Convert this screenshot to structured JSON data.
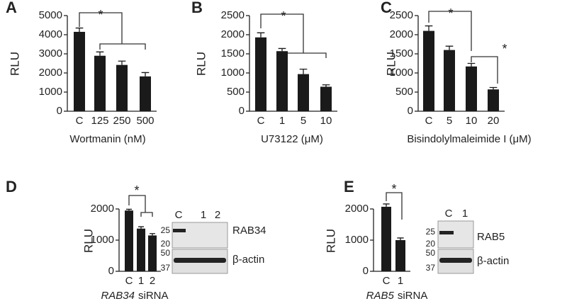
{
  "chart_data": [
    {
      "type": "bar",
      "panel": "A",
      "ylabel": "RLU",
      "xlabel": "Wortmanin (nM)",
      "categories": [
        "C",
        "125",
        "250",
        "500"
      ],
      "values": [
        4150,
        2900,
        2420,
        1820
      ],
      "errors": [
        200,
        200,
        200,
        200
      ],
      "ylim": [
        0,
        5000
      ],
      "yticks": [
        0,
        1000,
        2000,
        3000,
        4000,
        5000
      ],
      "color": "#1a1a1a",
      "annotations": [
        "*"
      ]
    },
    {
      "type": "bar",
      "panel": "B",
      "ylabel": "RLU",
      "xlabel": "U73122 (μM)",
      "categories": [
        "C",
        "1",
        "5",
        "10"
      ],
      "values": [
        1930,
        1570,
        970,
        640
      ],
      "errors": [
        120,
        70,
        130,
        50
      ],
      "ylim": [
        0,
        2500
      ],
      "yticks": [
        0,
        500,
        1000,
        1500,
        2000,
        2500
      ],
      "color": "#1a1a1a",
      "annotations": [
        "*"
      ]
    },
    {
      "type": "bar",
      "panel": "C",
      "ylabel": "RLU",
      "xlabel": "Bisindolylmaleimide I (μM)",
      "categories": [
        "C",
        "5",
        "10",
        "20"
      ],
      "values": [
        2100,
        1600,
        1170,
        570
      ],
      "errors": [
        130,
        100,
        80,
        50
      ],
      "ylim": [
        0,
        2500
      ],
      "yticks": [
        0,
        500,
        1000,
        1500,
        2000,
        2500
      ],
      "color": "#1a1a1a",
      "annotations": [
        "*",
        "*"
      ]
    },
    {
      "type": "bar",
      "panel": "D",
      "ylabel": "RLU",
      "xlabel_italic": "RAB34",
      "xlabel": "siRNA",
      "categories": [
        "C",
        "1",
        "2"
      ],
      "values": [
        1950,
        1370,
        1150
      ],
      "errors": [
        40,
        60,
        60
      ],
      "ylim": [
        0,
        2000
      ],
      "yticks": [
        0,
        1000,
        2000
      ],
      "color": "#1a1a1a",
      "annotations": [
        "*"
      ],
      "blot": {
        "lanes": [
          "C",
          "1",
          "2"
        ],
        "bands": [
          "RAB34",
          "β-actin"
        ],
        "markers": [
          25,
          20,
          50,
          37
        ]
      }
    },
    {
      "type": "bar",
      "panel": "E",
      "ylabel": "RLU",
      "xlabel_italic": "RAB5",
      "xlabel": "siRNA",
      "categories": [
        "C",
        "1"
      ],
      "values": [
        2070,
        1000
      ],
      "errors": [
        90,
        70
      ],
      "ylim": [
        0,
        2000
      ],
      "yticks": [
        0,
        1000,
        2000
      ],
      "color": "#1a1a1a",
      "annotations": [
        "*"
      ],
      "blot": {
        "lanes": [
          "C",
          "1"
        ],
        "bands": [
          "RAB5",
          "β-actin"
        ],
        "markers": [
          25,
          20,
          50,
          37
        ]
      }
    }
  ]
}
